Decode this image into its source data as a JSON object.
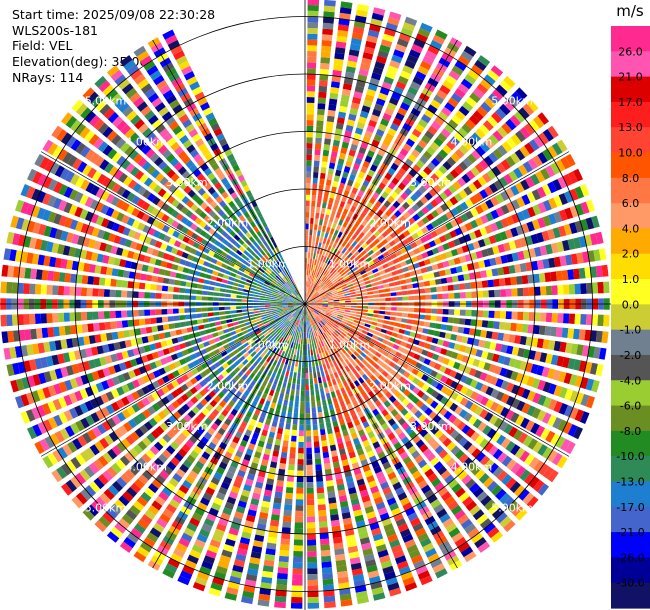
{
  "header": {
    "start_time": "Start time: 2025/09/08 22:30:28",
    "instrument": "WLS200s-181",
    "field": "Field: VEL",
    "elevation": "Elevation(deg): 35.00",
    "nrays": "NRays: 114"
  },
  "chart_data": {
    "type": "ppi-polar",
    "field": "VEL",
    "unit": "m/s",
    "nrays": 114,
    "elevation_deg": 35.0,
    "max_range_km": 5.3,
    "range_gate_km": 0.1,
    "missing_sector_deg": [
      -25,
      0
    ],
    "range_rings": [
      {
        "km": 1,
        "label": "1.00km"
      },
      {
        "km": 2,
        "label": "2.00km"
      },
      {
        "km": 3,
        "label": "3.00km"
      },
      {
        "km": 4,
        "label": "4.00km"
      },
      {
        "km": 5,
        "label": "5.00km"
      }
    ],
    "colorbar": {
      "ticks": [
        "26.0",
        "21.0",
        "17.0",
        "13.0",
        "10.0",
        "8.0",
        "6.0",
        "4.0",
        "2.0",
        "1.0",
        "0.0",
        "-1.0",
        "-2.0",
        "-4.0",
        "-6.0",
        "-8.0",
        "-10.0",
        "-13.0",
        "-17.0",
        "-21.0",
        "-26.0",
        "-30.0"
      ],
      "colors": [
        "#ff2a8f",
        "#ff55b0",
        "#dd0000",
        "#ff1e1e",
        "#ff4433",
        "#ff5500",
        "#ff7744",
        "#ff9966",
        "#ffaa00",
        "#ffdd00",
        "#ffff22",
        "#cccc33",
        "#708090",
        "#555555",
        "#9acd32",
        "#6b8e23",
        "#228b22",
        "#2e8b57",
        "#1e7fd0",
        "#4466cc",
        "#0000ff",
        "#000099",
        "#111166"
      ]
    },
    "near_field": {
      "range_km": 2.2,
      "approaching_colors": [
        "#2e8b57",
        "#228b22",
        "#1e7fd0",
        "#4466cc",
        "#6b8e23"
      ],
      "receding_colors": [
        "#ff5500",
        "#ff7744",
        "#ff4433",
        "#ff9966"
      ]
    }
  }
}
